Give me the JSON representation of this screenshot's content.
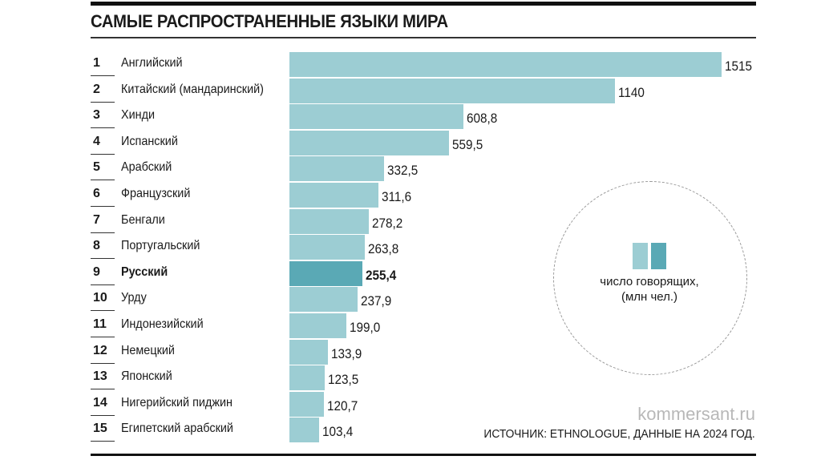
{
  "chart_data": {
    "type": "bar",
    "orientation": "horizontal",
    "title": "САМЫЕ РАСПРОСТРАНЕННЫЕ ЯЗЫКИ МИРА",
    "ranks": [
      "1",
      "2",
      "3",
      "4",
      "5",
      "6",
      "7",
      "8",
      "9",
      "10",
      "11",
      "12",
      "13",
      "14",
      "15"
    ],
    "categories": [
      "Английский",
      "Китайский (мандаринский)",
      "Хинди",
      "Испанский",
      "Арабский",
      "Французский",
      "Бенгали",
      "Португальский",
      "Русский",
      "Урду",
      "Индонезийский",
      "Немецкий",
      "Японский",
      "Нигерийский пиджин",
      "Египетский арабский"
    ],
    "values": [
      1515,
      1140,
      608.8,
      559.5,
      332.5,
      311.6,
      278.2,
      263.8,
      255.4,
      237.9,
      199.0,
      133.9,
      123.5,
      120.7,
      103.4
    ],
    "value_labels": [
      "1515",
      "1140",
      "608,8",
      "559,5",
      "332,5",
      "311,6",
      "278,2",
      "263,8",
      "255,4",
      "237,9",
      "199,0",
      "133,9",
      "123,5",
      "120,7",
      "103,4"
    ],
    "highlight_index": 8,
    "xlim": [
      0,
      1515
    ],
    "legend": {
      "line1": "число говорящих,",
      "line2": "(млн чел.)"
    },
    "colors": {
      "bar": "#9ccdd3",
      "highlight": "#5aa9b5"
    }
  },
  "footer": {
    "site": "kommersant.ru",
    "source": "ИСТОЧНИК: ETHNOLOGUE, ДАННЫЕ НА 2024 ГОД."
  }
}
